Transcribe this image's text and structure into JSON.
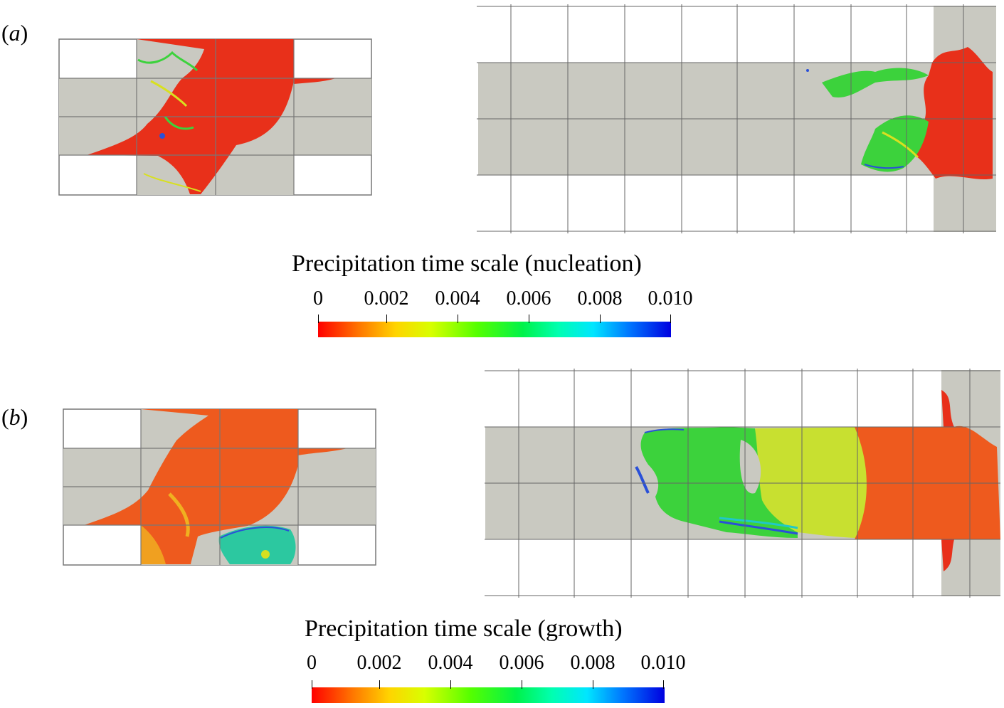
{
  "panels": {
    "a": {
      "label_open": "(",
      "label_letter": "a",
      "label_close": ")"
    },
    "b": {
      "label_open": "(",
      "label_letter": "b",
      "label_close": ")"
    }
  },
  "colorbars": {
    "nucleation": {
      "title": "Precipitation time scale (nucleation)",
      "ticks": [
        "0",
        "0.002",
        "0.004",
        "0.006",
        "0.008",
        "0.010"
      ]
    },
    "growth": {
      "title": "Precipitation time scale (growth)",
      "ticks": [
        "0",
        "0.002",
        "0.004",
        "0.006",
        "0.008",
        "0.010"
      ]
    }
  },
  "colors": {
    "domain_gray": "#c9c9c1",
    "grid_line": "#777777",
    "red": "#e8301a",
    "orange": "#ee5a1e",
    "yellow_green": "#c8e030",
    "green": "#3cd23c",
    "cyan": "#20c8c8",
    "blue": "#2a50d8"
  }
}
